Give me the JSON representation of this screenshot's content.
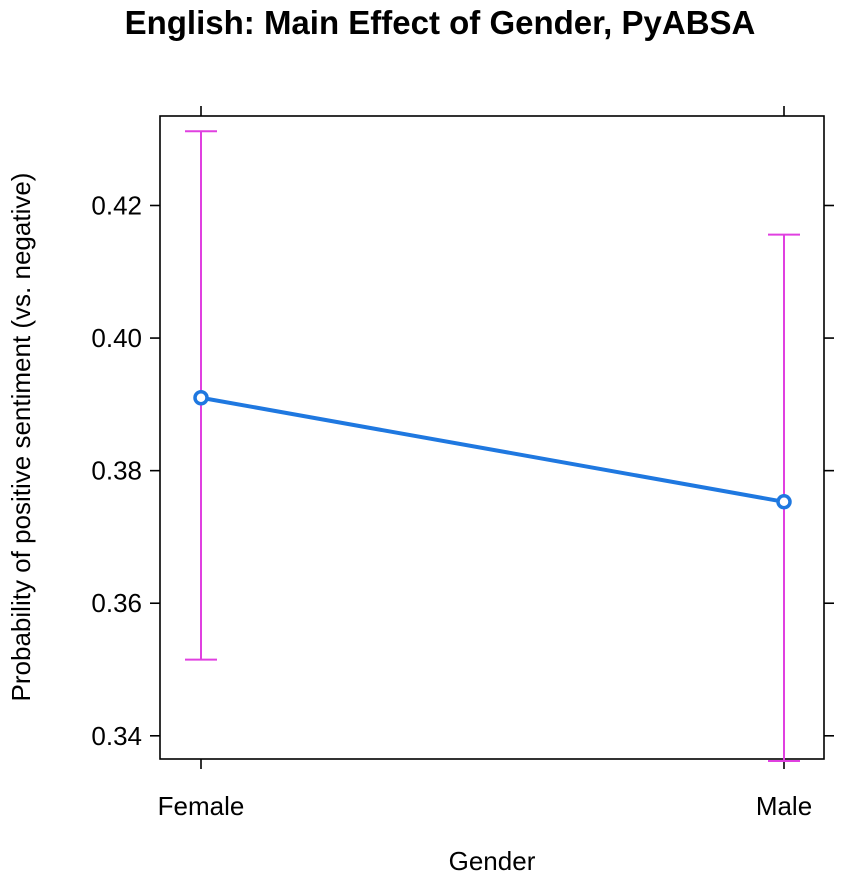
{
  "chart_data": {
    "type": "line",
    "title": "English: Main Effect of Gender, PyABSA",
    "xlabel": "Gender",
    "ylabel": "Probability of positive sentiment (vs. negative)",
    "categories": [
      "Female",
      "Male"
    ],
    "series": [
      {
        "values": [
          0.391,
          0.3753
        ],
        "lower": [
          0.3515,
          0.3362
        ],
        "upper": [
          0.4312,
          0.4156
        ],
        "color": "#1f78e0",
        "error_bar_color": "#e040e0"
      }
    ],
    "ylim": [
      0.3365,
      0.4335
    ],
    "yticks": [
      0.34,
      0.36,
      0.38,
      0.4,
      0.42
    ],
    "ytick_labels": [
      "0.34",
      "0.36",
      "0.38",
      "0.40",
      "0.42"
    ],
    "grid": false,
    "legend": "none"
  }
}
